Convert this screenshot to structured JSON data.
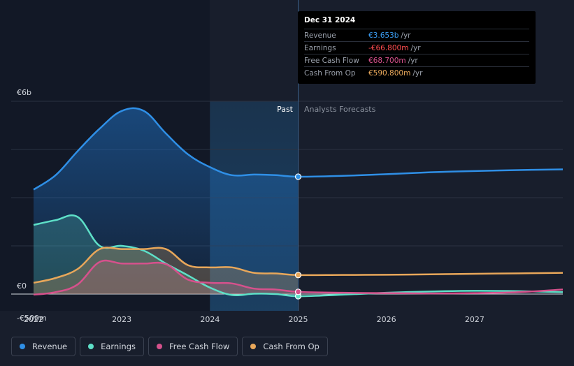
{
  "tooltip": {
    "date": "Dec 31 2024",
    "rows": [
      {
        "label": "Revenue",
        "value": "€3.653b",
        "unit": "/yr",
        "color": "#3a9bf0"
      },
      {
        "label": "Earnings",
        "value": "-€66.800m",
        "unit": "/yr",
        "color": "#ff4d4f"
      },
      {
        "label": "Free Cash Flow",
        "value": "€68.700m",
        "unit": "/yr",
        "color": "#d6518c"
      },
      {
        "label": "Cash From Op",
        "value": "€590.800m",
        "unit": "/yr",
        "color": "#e8a75a"
      }
    ]
  },
  "sections": {
    "past": "Past",
    "forecast": "Analysts Forecasts"
  },
  "legend": [
    {
      "label": "Revenue",
      "color": "#2f8fe6"
    },
    {
      "label": "Earnings",
      "color": "#5ee0c8"
    },
    {
      "label": "Free Cash Flow",
      "color": "#d6518c"
    },
    {
      "label": "Cash From Op",
      "color": "#e8a75a"
    }
  ],
  "chart_data": {
    "type": "area",
    "ylabel_ticks": [
      "€6b",
      "€0",
      "-€500m"
    ],
    "y_ticks_values": [
      6000,
      0,
      -500
    ],
    "ylim": [
      -500,
      6000
    ],
    "xlim": [
      2022.0,
      2028.0
    ],
    "x_ticks": [
      "2022",
      "2023",
      "2024",
      "2025",
      "2026",
      "2027"
    ],
    "x_ticks_values": [
      2022,
      2023,
      2024,
      2025,
      2026,
      2027
    ],
    "past_end": 2025.0,
    "highlight_start": 2024.0,
    "series": [
      {
        "name": "Revenue",
        "color": "#2f8fe6",
        "x": [
          2022.0,
          2022.25,
          2022.5,
          2022.75,
          2023.0,
          2023.25,
          2023.5,
          2023.75,
          2024.0,
          2024.25,
          2024.5,
          2024.75,
          2025.0,
          2025.5,
          2026.0,
          2026.5,
          2027.0,
          2027.5,
          2028.0
        ],
        "y": [
          3250,
          3700,
          4450,
          5150,
          5700,
          5700,
          5000,
          4350,
          3950,
          3700,
          3720,
          3700,
          3653,
          3680,
          3730,
          3790,
          3830,
          3860,
          3880
        ]
      },
      {
        "name": "Earnings",
        "color": "#5ee0c8",
        "x": [
          2022.0,
          2022.25,
          2022.5,
          2022.75,
          2023.0,
          2023.25,
          2023.5,
          2023.75,
          2024.0,
          2024.25,
          2024.5,
          2024.75,
          2025.0,
          2025.5,
          2026.0,
          2026.5,
          2027.0,
          2027.5,
          2028.0
        ],
        "y": [
          2150,
          2300,
          2400,
          1500,
          1500,
          1350,
          950,
          580,
          200,
          -30,
          10,
          0,
          -67,
          -20,
          40,
          80,
          100,
          90,
          60
        ]
      },
      {
        "name": "Free Cash Flow",
        "color": "#d6518c",
        "x": [
          2022.0,
          2022.25,
          2022.5,
          2022.75,
          2023.0,
          2023.25,
          2023.5,
          2023.75,
          2024.0,
          2024.25,
          2024.5,
          2024.75,
          2025.0,
          2025.5,
          2026.0,
          2026.5,
          2027.0,
          2027.5,
          2028.0
        ],
        "y": [
          -20,
          60,
          300,
          1000,
          950,
          950,
          930,
          450,
          350,
          330,
          170,
          140,
          69,
          40,
          30,
          20,
          30,
          60,
          140
        ]
      },
      {
        "name": "Cash From Op",
        "color": "#e8a75a",
        "x": [
          2022.0,
          2022.25,
          2022.5,
          2022.75,
          2023.0,
          2023.25,
          2023.5,
          2023.75,
          2024.0,
          2024.25,
          2024.5,
          2024.75,
          2025.0,
          2025.5,
          2026.0,
          2026.5,
          2027.0,
          2027.5,
          2028.0
        ],
        "y": [
          350,
          500,
          780,
          1400,
          1400,
          1400,
          1400,
          900,
          830,
          830,
          660,
          640,
          591,
          595,
          600,
          615,
          630,
          645,
          660
        ]
      }
    ]
  }
}
